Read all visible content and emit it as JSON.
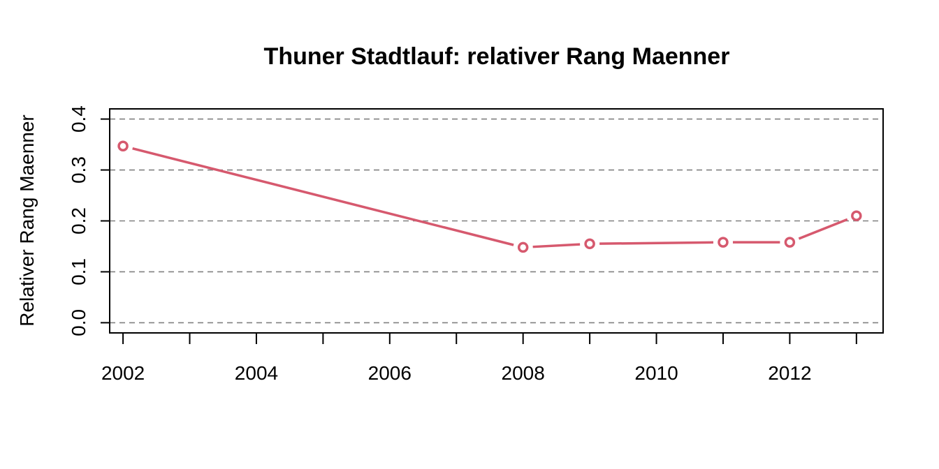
{
  "chart_data": {
    "type": "line",
    "title": "Thuner Stadtlauf: relativer Rang Maenner",
    "xlabel": "",
    "ylabel": "Relativer Rang Maenner",
    "xlim": [
      2001.8,
      2013.4
    ],
    "ylim": [
      -0.02,
      0.42
    ],
    "x_ticks": [
      2002,
      2003,
      2004,
      2005,
      2006,
      2007,
      2008,
      2009,
      2010,
      2011,
      2012,
      2013
    ],
    "x_tick_labels": [
      {
        "value": 2002,
        "label": "2002"
      },
      {
        "value": 2004,
        "label": "2004"
      },
      {
        "value": 2006,
        "label": "2006"
      },
      {
        "value": 2008,
        "label": "2008"
      },
      {
        "value": 2010,
        "label": "2010"
      },
      {
        "value": 2012,
        "label": "2012"
      }
    ],
    "y_ticks": [
      {
        "value": 0.0,
        "label": "0.0"
      },
      {
        "value": 0.1,
        "label": "0.1"
      },
      {
        "value": 0.2,
        "label": "0.2"
      },
      {
        "value": 0.3,
        "label": "0.3"
      },
      {
        "value": 0.4,
        "label": "0.4"
      }
    ],
    "grid": "horizontal-dashed",
    "series": [
      {
        "x": [
          2002,
          2008,
          2009,
          2011,
          2012,
          2013
        ],
        "y": [
          0.347,
          0.148,
          0.155,
          0.158,
          0.158,
          0.21
        ],
        "color": "#d6596e",
        "markers": "open-circle"
      }
    ]
  }
}
